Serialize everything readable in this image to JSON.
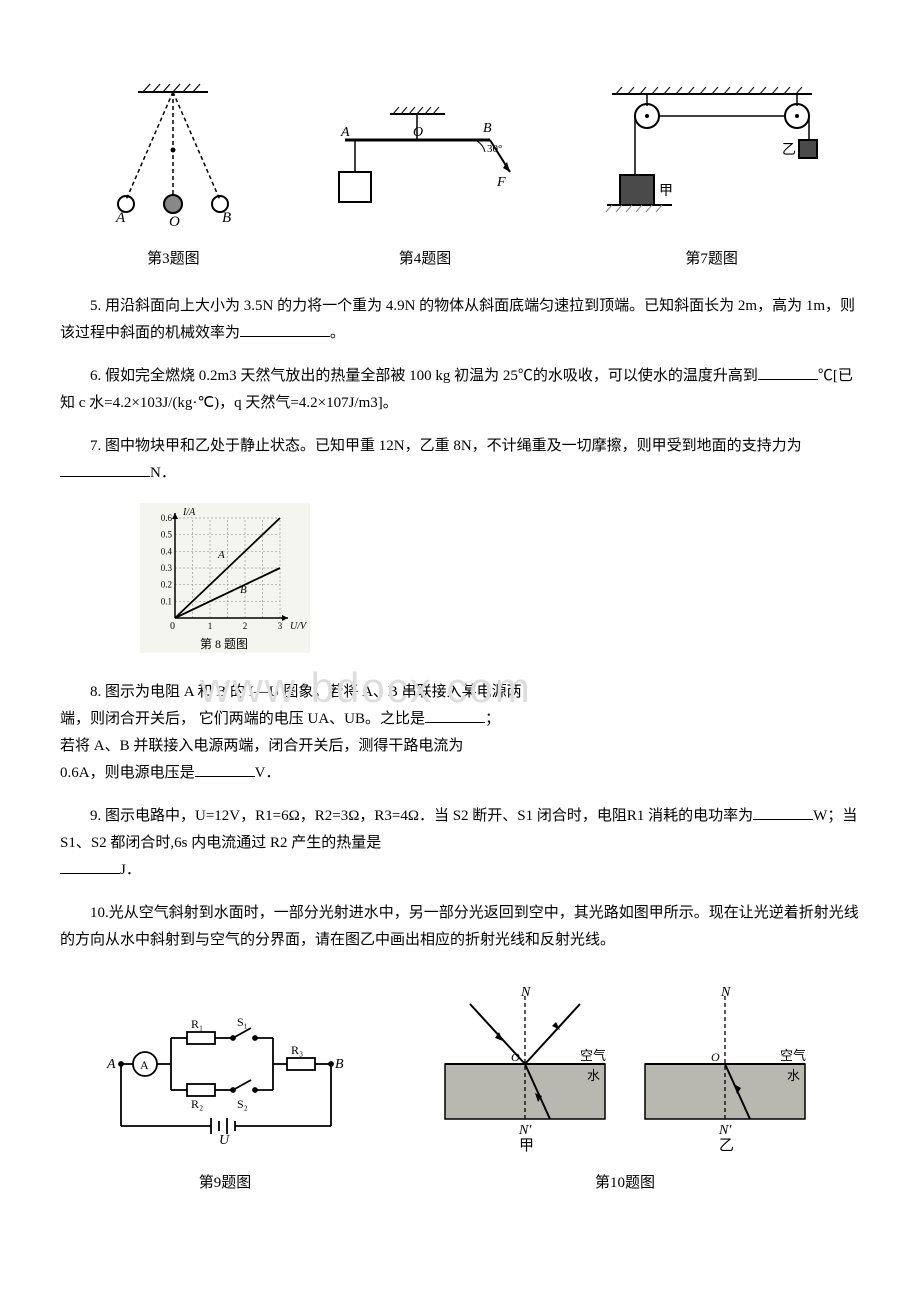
{
  "figures_top": {
    "pendulum": {
      "caption": "第3题图",
      "labels": {
        "A": "A",
        "O": "O",
        "B": "B"
      },
      "colors": {
        "stroke": "#000000",
        "fill": "#808080"
      }
    },
    "lever": {
      "caption": "第4题图",
      "labels": {
        "A": "A",
        "O": "O",
        "B": "B",
        "F": "F",
        "angle": "30°"
      },
      "colors": {
        "stroke": "#000000"
      }
    },
    "pulley": {
      "caption": "第7题图",
      "labels": {
        "jia": "甲",
        "yi": "乙"
      },
      "colors": {
        "stroke": "#000000",
        "block": "#4a4a4a",
        "hatch": "#888888"
      }
    }
  },
  "q5": {
    "text": "5. 用沿斜面向上大小为 3.5N 的力将一个重为 4.9N 的物体从斜面底端匀速拉到顶端。已知斜面长为 2m，高为 1m，则该过程中斜面的机械效率为",
    "suffix": "。"
  },
  "q6": {
    "text": "6. 假如完全燃烧 0.2m3 天然气放出的热量全部被 100 kg 初温为 25℃的水吸收，可以使水的温度升高到",
    "suffix": "℃[已知 c 水=4.2×103J/(kg·℃)，q 天然气=4.2×107J/m3]。"
  },
  "q7": {
    "text": "7. 图中物块甲和乙处于静止状态。已知甲重 12N，乙重 8N，不计绳重及一切摩擦，则甲受到地面的支持力为",
    "suffix": "N．"
  },
  "chart8": {
    "type": "line",
    "caption": "第 8 题图",
    "xlabel": "U/V",
    "ylabel": "I/A",
    "xlim": [
      0,
      3
    ],
    "ylim": [
      0,
      0.6
    ],
    "xticks": [
      0,
      1,
      2,
      3
    ],
    "yticks": [
      0.1,
      0.2,
      0.3,
      0.4,
      0.5,
      0.6
    ],
    "series": {
      "A": {
        "points": [
          [
            0,
            0
          ],
          [
            3,
            0.6
          ]
        ],
        "label": "A",
        "color": "#000000"
      },
      "B": {
        "points": [
          [
            0,
            0
          ],
          [
            3,
            0.3
          ]
        ],
        "label": "B",
        "color": "#000000"
      }
    },
    "grid_color": "#999999",
    "background": "#f5f5f0",
    "label_fontsize": 9
  },
  "q8": {
    "line1": "8. 图示为电阻 A 和 B 的 I—U 图象。若将 A、B 串联接入某电源两",
    "line2": "端，则闭合开关后， 它们两端的电压 UA、UB。之比是",
    "line2_suffix": "；",
    "line3": "若将 A、B 并联接入电源两端，闭合开关后，测得干路电流为",
    "line4": "0.6A，则电源电压是",
    "line4_suffix": "V．"
  },
  "q9": {
    "text1": "9. 图示电路中，U=12V，R1=6Ω，R2=3Ω，R3=4Ω．当 S2 断开、S1 闭合时，电阻R1 消耗的电功率为",
    "mid": "W；当 S1、S2 都闭合时,6s 内电流通过 R2 产生的热量是",
    "suffix": "J．"
  },
  "q10": {
    "text": "10.光从空气斜射到水面时，一部分光射进水中，另一部分光返回到空中，其光路如图甲所示。现在让光逆着折射光线的方向从水中斜射到与空气的分界面，请在图乙中画出相应的折射光线和反射光线。"
  },
  "figures_bottom": {
    "circuit": {
      "caption": "第9题图",
      "labels": {
        "A": "A",
        "B": "B",
        "R1": "R₁",
        "R2": "R₂",
        "R3": "R₃",
        "S1": "S₁",
        "S2": "S₂",
        "U": "U",
        "ammeter": "A"
      },
      "colors": {
        "stroke": "#000000"
      }
    },
    "refraction": {
      "caption": "第10题图",
      "labels": {
        "N": "N",
        "Nprime": "N′",
        "O": "O",
        "air": "空气",
        "water": "水",
        "jia": "甲",
        "yi": "乙"
      },
      "colors": {
        "stroke": "#000000",
        "water_fill": "#b8b8b0",
        "dash": "#000000"
      }
    }
  },
  "watermark": "www bdocx com"
}
